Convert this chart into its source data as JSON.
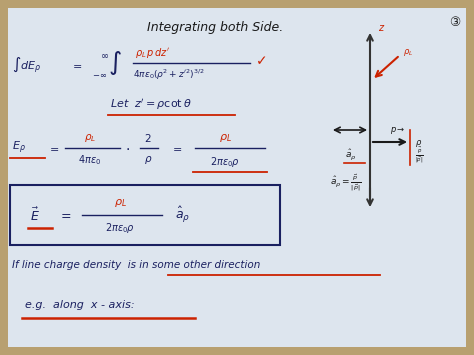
{
  "border_color": "#b8a070",
  "paper_color": "#dde5ee",
  "blue": "#1a2060",
  "red": "#cc2200",
  "dark": "#1a1a1a",
  "title": "Integrating both Side.",
  "circle3": "3",
  "bg_outer": "#a08050"
}
